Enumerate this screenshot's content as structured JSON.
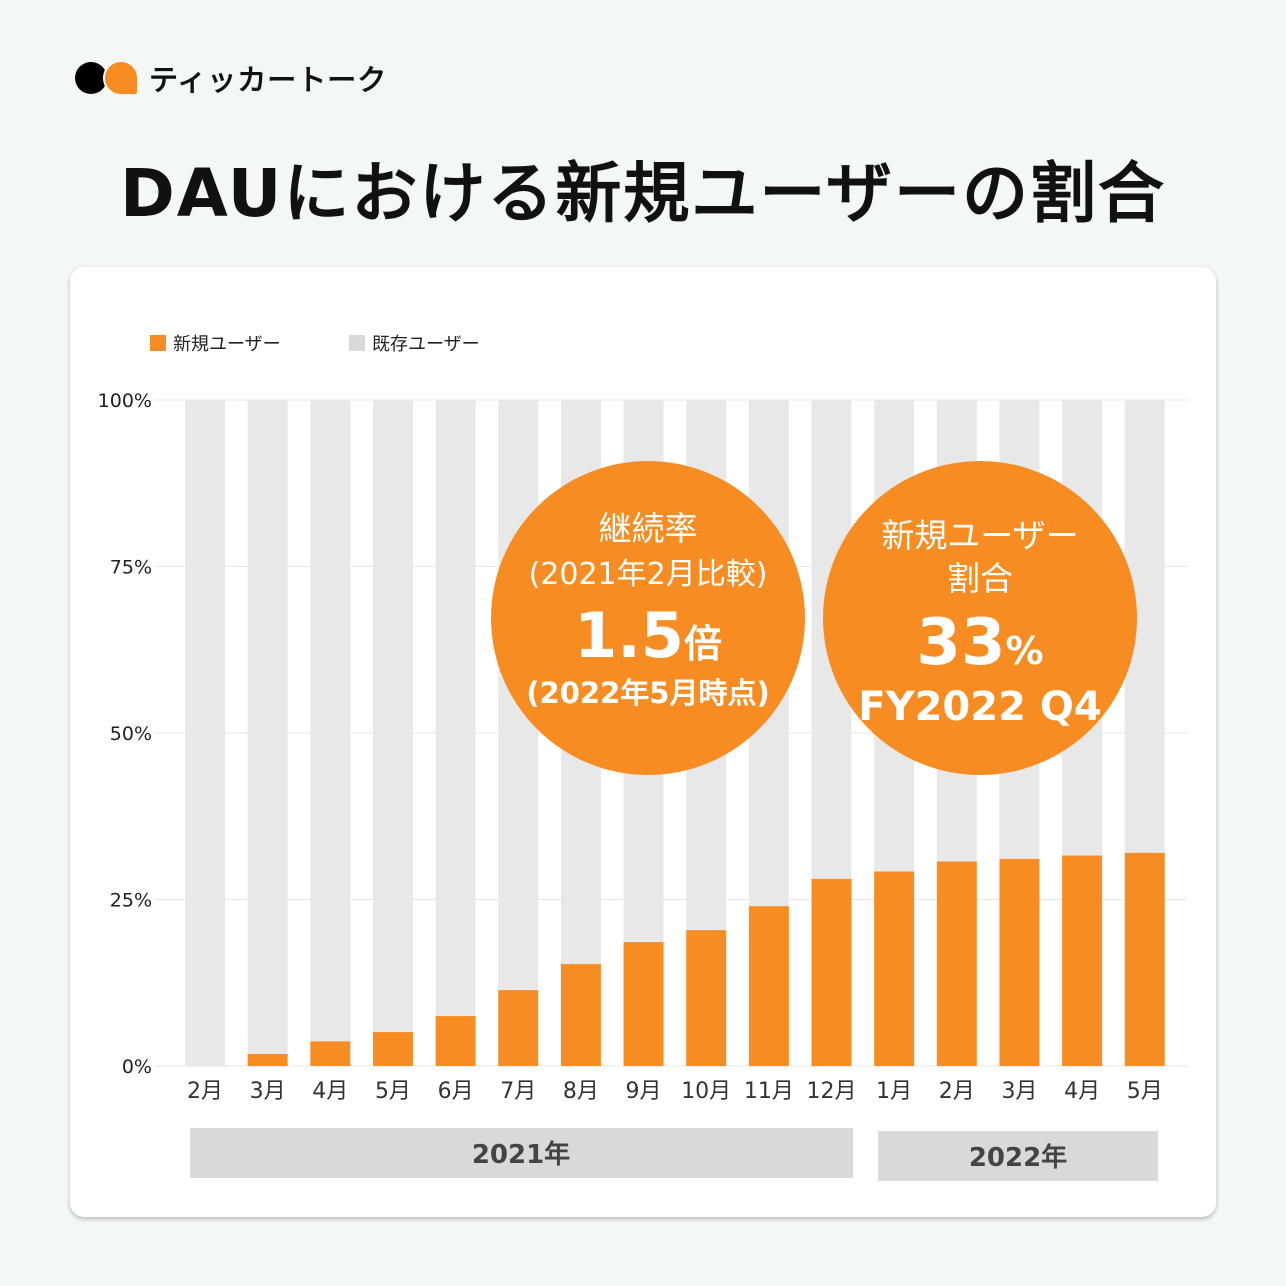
{
  "brand": {
    "name": "ティッカートーク"
  },
  "title": "DAUにおける新規ユーザーの割合",
  "chart_data": {
    "type": "bar",
    "stacked": true,
    "title": "DAUにおける新規ユーザーの割合",
    "categories": [
      "2月",
      "3月",
      "4月",
      "5月",
      "6月",
      "7月",
      "8月",
      "9月",
      "10月",
      "11月",
      "12月",
      "1月",
      "2月",
      "3月",
      "4月",
      "5月"
    ],
    "year_groups": [
      {
        "label": "2021年",
        "count": 11
      },
      {
        "label": "2022年",
        "count": 5
      }
    ],
    "series": [
      {
        "name": "新規ユーザー",
        "color": "#f78d22",
        "values": [
          0,
          1.8,
          3.7,
          5.1,
          7.5,
          11.4,
          15.3,
          18.6,
          20.4,
          24.0,
          28.1,
          29.2,
          30.7,
          31.1,
          31.6,
          32.0
        ]
      },
      {
        "name": "既存ユーザー",
        "color": "#e8e8e8",
        "values": [
          100,
          98.2,
          96.3,
          94.9,
          92.5,
          88.6,
          84.7,
          81.4,
          79.6,
          76.0,
          71.9,
          70.8,
          69.3,
          68.9,
          68.4,
          68.0
        ]
      }
    ],
    "yticks": [
      "0%",
      "25%",
      "50%",
      "75%",
      "100%"
    ],
    "ylim": [
      0,
      100
    ],
    "legend": "top-left",
    "grid": true,
    "annotations": [
      {
        "lines": [
          "継続率",
          "(2021年2月比較)"
        ],
        "value": "1.5",
        "unit": "倍",
        "footer": "(2022年5月時点)"
      },
      {
        "lines": [
          "新規ユーザー",
          "割合"
        ],
        "value": "33",
        "unit": "%",
        "footer": "FY2022 Q4"
      }
    ]
  }
}
